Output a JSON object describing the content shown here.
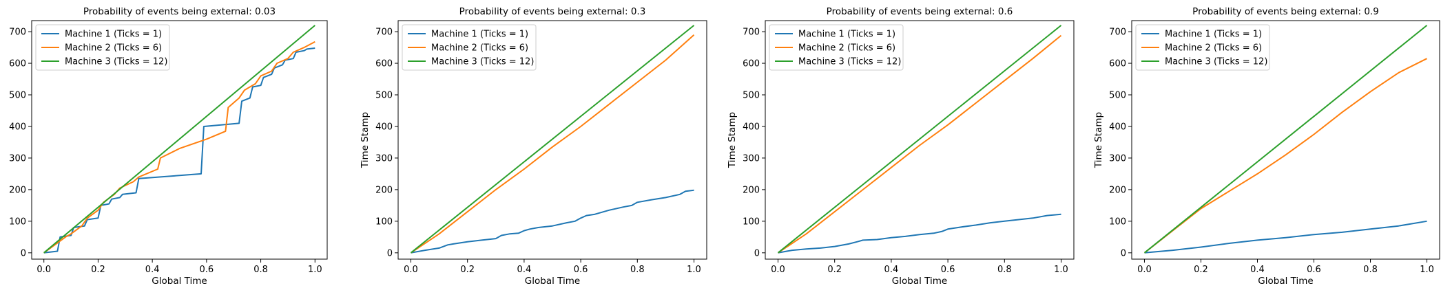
{
  "colors": {
    "machine1": "#1f77b4",
    "machine2": "#ff7f0e",
    "machine3": "#2ca02c"
  },
  "chart_data": [
    {
      "type": "line",
      "title": "Probability of events being external: 0.03",
      "xlabel": "Global Time",
      "ylabel": "",
      "xlim": [
        0,
        1
      ],
      "ylim": [
        0,
        720
      ],
      "xticks": [
        "0.0",
        "0.2",
        "0.4",
        "0.6",
        "0.8",
        "1.0"
      ],
      "yticks": [
        "0",
        "100",
        "200",
        "300",
        "400",
        "500",
        "600",
        "700"
      ],
      "legend_position": "upper left",
      "series": [
        {
          "name": "Machine 1 (Ticks = 1)",
          "color_key": "machine1",
          "x": [
            0,
            0.05,
            0.06,
            0.1,
            0.11,
            0.15,
            0.16,
            0.2,
            0.21,
            0.24,
            0.25,
            0.28,
            0.29,
            0.32,
            0.34,
            0.35,
            0.58,
            0.59,
            0.72,
            0.73,
            0.76,
            0.77,
            0.8,
            0.81,
            0.84,
            0.85,
            0.88,
            0.89,
            0.92,
            0.93,
            0.96,
            0.97,
            1.0
          ],
          "y": [
            0,
            5,
            50,
            55,
            80,
            85,
            105,
            110,
            150,
            155,
            170,
            175,
            185,
            188,
            190,
            235,
            250,
            400,
            410,
            480,
            490,
            525,
            530,
            555,
            565,
            585,
            595,
            610,
            615,
            635,
            640,
            645,
            648
          ]
        },
        {
          "name": "Machine 2 (Ticks = 6)",
          "color_key": "machine2",
          "x": [
            0,
            0.04,
            0.08,
            0.1,
            0.14,
            0.16,
            0.2,
            0.22,
            0.26,
            0.28,
            0.33,
            0.35,
            0.42,
            0.43,
            0.5,
            0.6,
            0.67,
            0.68,
            0.72,
            0.74,
            0.78,
            0.8,
            0.84,
            0.86,
            0.9,
            0.92,
            0.96,
            1.0
          ],
          "y": [
            0,
            25,
            50,
            60,
            85,
            110,
            135,
            160,
            185,
            205,
            225,
            240,
            265,
            300,
            330,
            360,
            385,
            460,
            490,
            515,
            535,
            560,
            575,
            600,
            615,
            635,
            650,
            668
          ]
        },
        {
          "name": "Machine 3 (Ticks = 12)",
          "color_key": "machine3",
          "x": [
            0,
            1.0
          ],
          "y": [
            0,
            720
          ]
        }
      ]
    },
    {
      "type": "line",
      "title": "Probability of events being external: 0.3",
      "xlabel": "Global Time",
      "ylabel": "Time Stamp",
      "xlim": [
        0,
        1
      ],
      "ylim": [
        0,
        720
      ],
      "xticks": [
        "0.0",
        "0.2",
        "0.4",
        "0.6",
        "0.8",
        "1.0"
      ],
      "yticks": [
        "0",
        "100",
        "200",
        "300",
        "400",
        "500",
        "600",
        "700"
      ],
      "legend_position": "upper left",
      "series": [
        {
          "name": "Machine 1 (Ticks = 1)",
          "color_key": "machine1",
          "x": [
            0,
            0.05,
            0.1,
            0.13,
            0.15,
            0.2,
            0.25,
            0.3,
            0.32,
            0.35,
            0.38,
            0.4,
            0.42,
            0.45,
            0.5,
            0.55,
            0.58,
            0.6,
            0.62,
            0.65,
            0.7,
            0.75,
            0.78,
            0.8,
            0.85,
            0.9,
            0.95,
            0.97,
            1.0
          ],
          "y": [
            0,
            8,
            15,
            25,
            28,
            35,
            40,
            45,
            55,
            60,
            62,
            70,
            75,
            80,
            85,
            95,
            100,
            110,
            118,
            122,
            135,
            145,
            150,
            160,
            168,
            175,
            185,
            195,
            198
          ]
        },
        {
          "name": "Machine 2 (Ticks = 6)",
          "color_key": "machine2",
          "x": [
            0,
            0.1,
            0.2,
            0.3,
            0.4,
            0.5,
            0.6,
            0.7,
            0.8,
            0.9,
            1.0
          ],
          "y": [
            0,
            60,
            130,
            200,
            265,
            335,
            400,
            470,
            540,
            610,
            690
          ]
        },
        {
          "name": "Machine 3 (Ticks = 12)",
          "color_key": "machine3",
          "x": [
            0,
            1.0
          ],
          "y": [
            0,
            720
          ]
        }
      ]
    },
    {
      "type": "line",
      "title": "Probability of events being external: 0.6",
      "xlabel": "Global Time",
      "ylabel": "Time Stamp",
      "xlim": [
        0,
        1
      ],
      "ylim": [
        0,
        720
      ],
      "xticks": [
        "0.0",
        "0.2",
        "0.4",
        "0.6",
        "0.8",
        "1.0"
      ],
      "yticks": [
        "0",
        "100",
        "200",
        "300",
        "400",
        "500",
        "600",
        "700"
      ],
      "legend_position": "upper left",
      "series": [
        {
          "name": "Machine 1 (Ticks = 1)",
          "color_key": "machine1",
          "x": [
            0,
            0.05,
            0.1,
            0.15,
            0.2,
            0.25,
            0.28,
            0.3,
            0.35,
            0.4,
            0.45,
            0.5,
            0.55,
            0.58,
            0.6,
            0.65,
            0.7,
            0.75,
            0.8,
            0.85,
            0.9,
            0.95,
            1.0
          ],
          "y": [
            0,
            8,
            12,
            15,
            20,
            28,
            35,
            40,
            42,
            48,
            52,
            58,
            62,
            68,
            75,
            82,
            88,
            95,
            100,
            105,
            110,
            118,
            122
          ]
        },
        {
          "name": "Machine 2 (Ticks = 6)",
          "color_key": "machine2",
          "x": [
            0,
            0.1,
            0.2,
            0.3,
            0.4,
            0.5,
            0.6,
            0.7,
            0.8,
            0.9,
            1.0
          ],
          "y": [
            0,
            60,
            130,
            200,
            270,
            340,
            405,
            475,
            545,
            615,
            688
          ]
        },
        {
          "name": "Machine 3 (Ticks = 12)",
          "color_key": "machine3",
          "x": [
            0,
            1.0
          ],
          "y": [
            0,
            720
          ]
        }
      ]
    },
    {
      "type": "line",
      "title": "Probability of events being external: 0.9",
      "xlabel": "Global Time",
      "ylabel": "Time Stamp",
      "xlim": [
        0,
        1
      ],
      "ylim": [
        0,
        720
      ],
      "xticks": [
        "0.0",
        "0.2",
        "0.4",
        "0.6",
        "0.8",
        "1.0"
      ],
      "yticks": [
        "0",
        "100",
        "200",
        "300",
        "400",
        "500",
        "600",
        "700"
      ],
      "legend_position": "upper left",
      "series": [
        {
          "name": "Machine 1 (Ticks = 1)",
          "color_key": "machine1",
          "x": [
            0,
            0.1,
            0.2,
            0.3,
            0.4,
            0.5,
            0.6,
            0.7,
            0.8,
            0.9,
            1.0
          ],
          "y": [
            0,
            8,
            18,
            30,
            40,
            48,
            58,
            65,
            75,
            85,
            100
          ]
        },
        {
          "name": "Machine 2 (Ticks = 6)",
          "color_key": "machine2",
          "x": [
            0,
            0.1,
            0.2,
            0.3,
            0.4,
            0.5,
            0.6,
            0.7,
            0.8,
            0.9,
            1.0
          ],
          "y": [
            0,
            70,
            140,
            195,
            250,
            310,
            375,
            445,
            510,
            570,
            615
          ]
        },
        {
          "name": "Machine 3 (Ticks = 12)",
          "color_key": "machine3",
          "x": [
            0,
            1.0
          ],
          "y": [
            0,
            720
          ]
        }
      ]
    }
  ]
}
